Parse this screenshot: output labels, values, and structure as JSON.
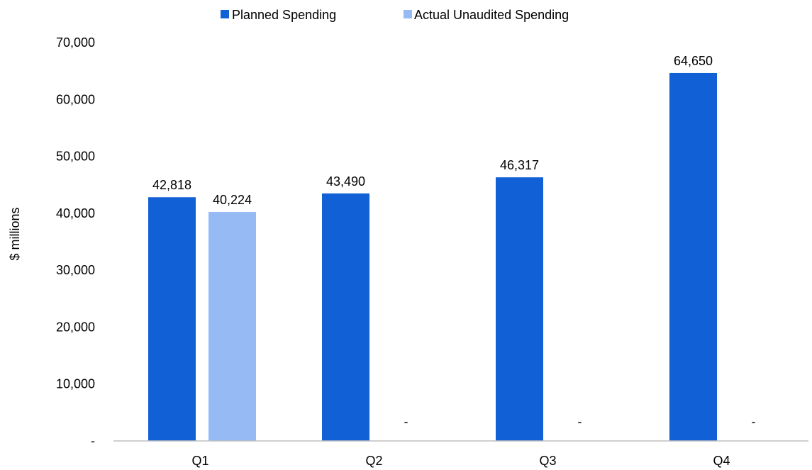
{
  "chart_data": {
    "type": "bar",
    "categories": [
      "Q1",
      "Q2",
      "Q3",
      "Q4"
    ],
    "series": [
      {
        "name": "Planned Spending",
        "color": "#1260D6",
        "values": [
          42818,
          43490,
          46317,
          64650
        ],
        "labels": [
          "42,818",
          "43,490",
          "46,317",
          "64,650"
        ]
      },
      {
        "name": "Actual Unaudited Spending",
        "color": "#95BAF4",
        "values": [
          40224,
          0,
          0,
          0
        ],
        "labels": [
          "40,224",
          "-",
          "-",
          "-"
        ]
      }
    ],
    "ylabel": "$ millions",
    "ylim": [
      0,
      70000
    ],
    "yticks": [
      0,
      10000,
      20000,
      30000,
      40000,
      50000,
      60000,
      70000
    ],
    "ytick_labels": [
      "-",
      "10,000",
      "20,000",
      "30,000",
      "40,000",
      "50,000",
      "60,000",
      "70,000"
    ],
    "grid": false,
    "legend_position": "top-center",
    "axis_color": "#BFBFBF"
  }
}
